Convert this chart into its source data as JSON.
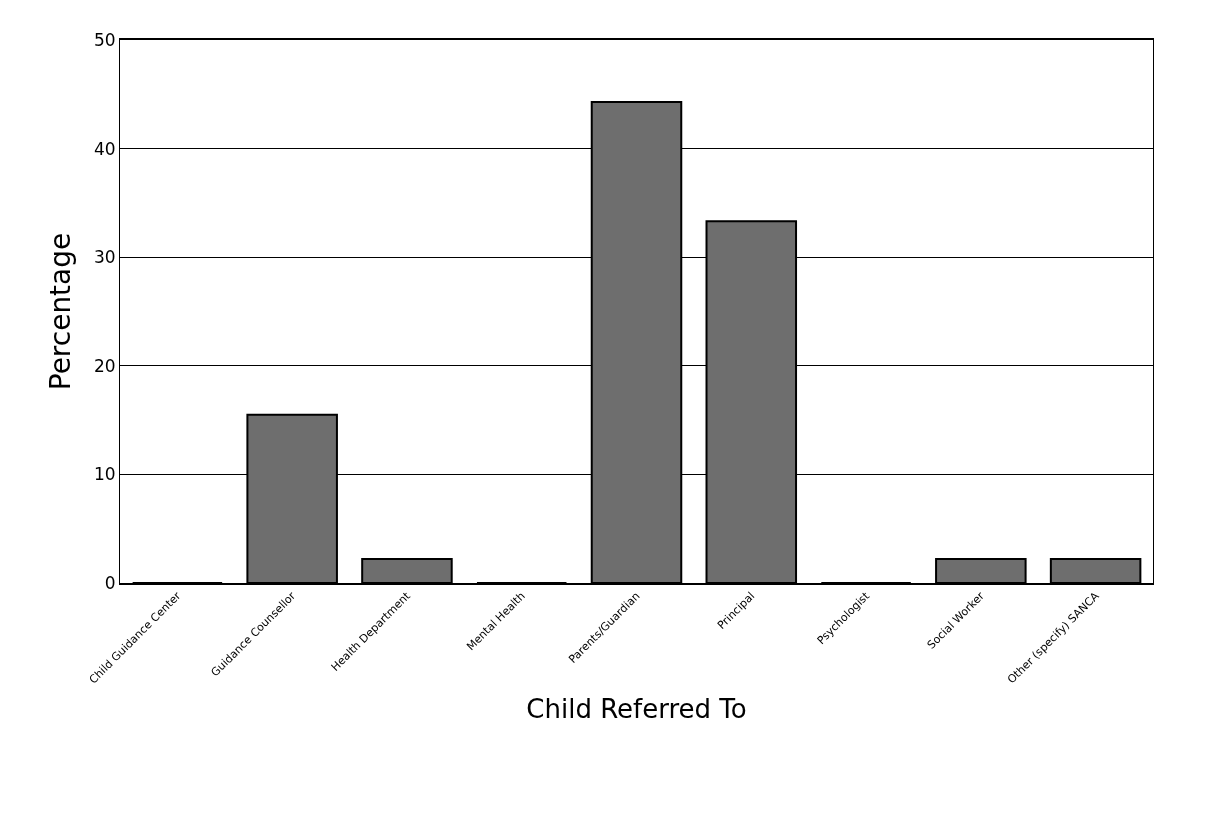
{
  "chart_data": {
    "type": "bar",
    "xlabel": "Child Referred To",
    "ylabel": "Percentage",
    "categories": [
      "Child Guidance Center",
      "Guidance Counsellor",
      "Health Department",
      "Mental Health",
      "Parents/Guardian",
      "Principal",
      "Psychologist",
      "Social Worker",
      "Other (specify) SANCA"
    ],
    "values": [
      0,
      15.5,
      2.2,
      0,
      44.3,
      33.3,
      0,
      2.2,
      2.2
    ],
    "color": "#6e6e6e",
    "ylim": [
      0,
      50
    ],
    "yticks": [
      0,
      10,
      20,
      30,
      40,
      50
    ],
    "grid": "y",
    "legend": false
  }
}
